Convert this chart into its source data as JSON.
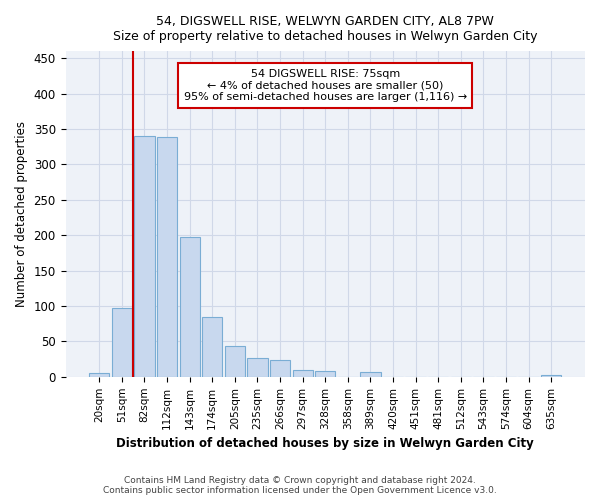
{
  "title": "54, DIGSWELL RISE, WELWYN GARDEN CITY, AL8 7PW",
  "subtitle": "Size of property relative to detached houses in Welwyn Garden City",
  "xlabel": "Distribution of detached houses by size in Welwyn Garden City",
  "ylabel": "Number of detached properties",
  "categories": [
    "20sqm",
    "51sqm",
    "82sqm",
    "112sqm",
    "143sqm",
    "174sqm",
    "205sqm",
    "235sqm",
    "266sqm",
    "297sqm",
    "328sqm",
    "358sqm",
    "389sqm",
    "420sqm",
    "451sqm",
    "481sqm",
    "512sqm",
    "543sqm",
    "574sqm",
    "604sqm",
    "635sqm"
  ],
  "values": [
    5,
    97,
    340,
    338,
    197,
    85,
    44,
    26,
    24,
    10,
    8,
    0,
    7,
    0,
    0,
    0,
    0,
    0,
    0,
    0,
    2
  ],
  "bar_color": "#c8d8ee",
  "bar_edge_color": "#7aadd4",
  "grid_color": "#d0d8e8",
  "vline_color": "#cc0000",
  "vline_x": 1.5,
  "annotation_text": "54 DIGSWELL RISE: 75sqm\n← 4% of detached houses are smaller (50)\n95% of semi-detached houses are larger (1,116) →",
  "annotation_box_color": "#cc0000",
  "ylim": [
    0,
    460
  ],
  "yticks": [
    0,
    50,
    100,
    150,
    200,
    250,
    300,
    350,
    400,
    450
  ],
  "footer": "Contains HM Land Registry data © Crown copyright and database right 2024.\nContains public sector information licensed under the Open Government Licence v3.0.",
  "background_color": "#ffffff",
  "plot_bg_color": "#eef2f8"
}
